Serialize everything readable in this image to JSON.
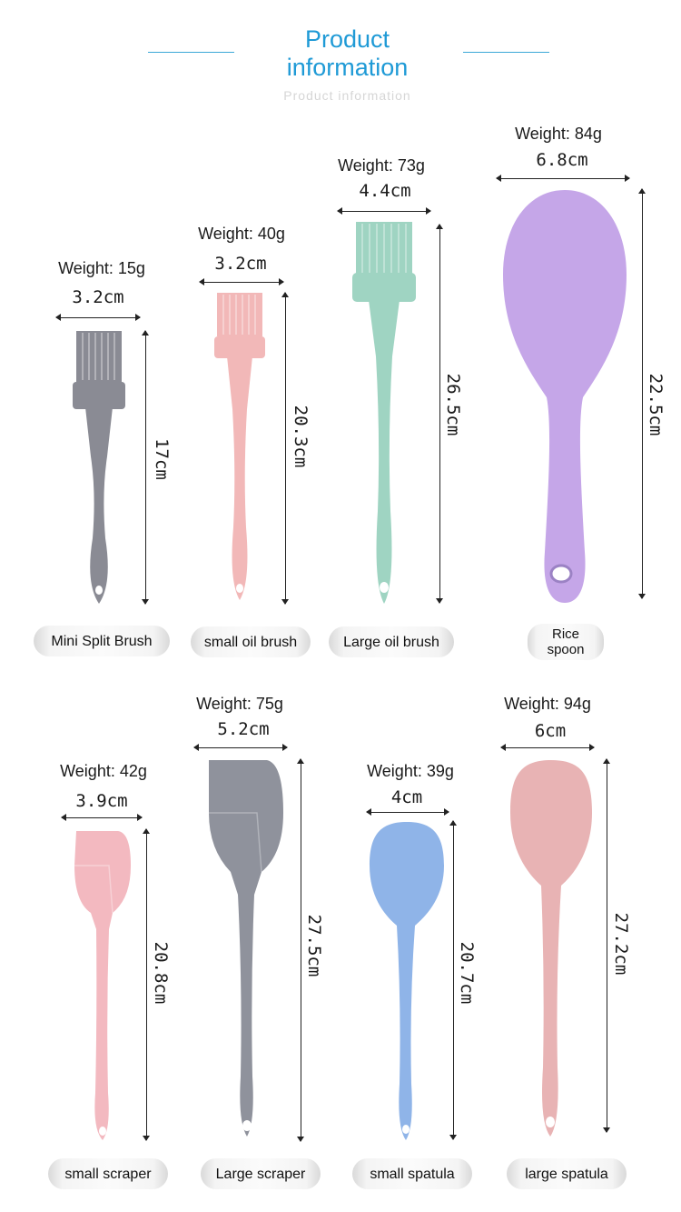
{
  "header": {
    "title_line1": "Product",
    "title_line2": "information",
    "subtitle": "Product information"
  },
  "products": [
    {
      "name": "Mini Split Brush",
      "weight": "Weight: 15g",
      "width": "3.2cm",
      "length": "17cm",
      "color": "#8a8b94",
      "icon": "brush-icon"
    },
    {
      "name": "small oil brush",
      "weight": "Weight: 40g",
      "width": "3.2cm",
      "length": "20.3cm",
      "color": "#f2b8b8",
      "icon": "brush-icon"
    },
    {
      "name": "Large oil brush",
      "weight": "Weight: 73g",
      "width": "4.4cm",
      "length": "26.5cm",
      "color": "#9fd4c2",
      "icon": "brush-icon"
    },
    {
      "name": "Rice spoon",
      "name_line1": "Rice",
      "name_line2": "spoon",
      "weight": "Weight: 84g",
      "width": "6.8cm",
      "length": "22.5cm",
      "color": "#c5a6e8",
      "icon": "rice-spoon-icon"
    },
    {
      "name": "small scraper",
      "weight": "Weight: 42g",
      "width": "3.9cm",
      "length": "20.8cm",
      "color": "#f3b9c0",
      "icon": "scraper-icon"
    },
    {
      "name": "Large scraper",
      "weight": "Weight: 75g",
      "width": "5.2cm",
      "length": "27.5cm",
      "color": "#8f929c",
      "icon": "scraper-icon"
    },
    {
      "name": "small spatula",
      "weight": "Weight: 39g",
      "width": "4cm",
      "length": "20.7cm",
      "color": "#8fb4e8",
      "icon": "spoon-spatula-icon"
    },
    {
      "name": "large spatula",
      "weight": "Weight: 94g",
      "width": "6cm",
      "length": "27.2cm",
      "color": "#e8b3b4",
      "icon": "spoon-spatula-icon"
    }
  ]
}
